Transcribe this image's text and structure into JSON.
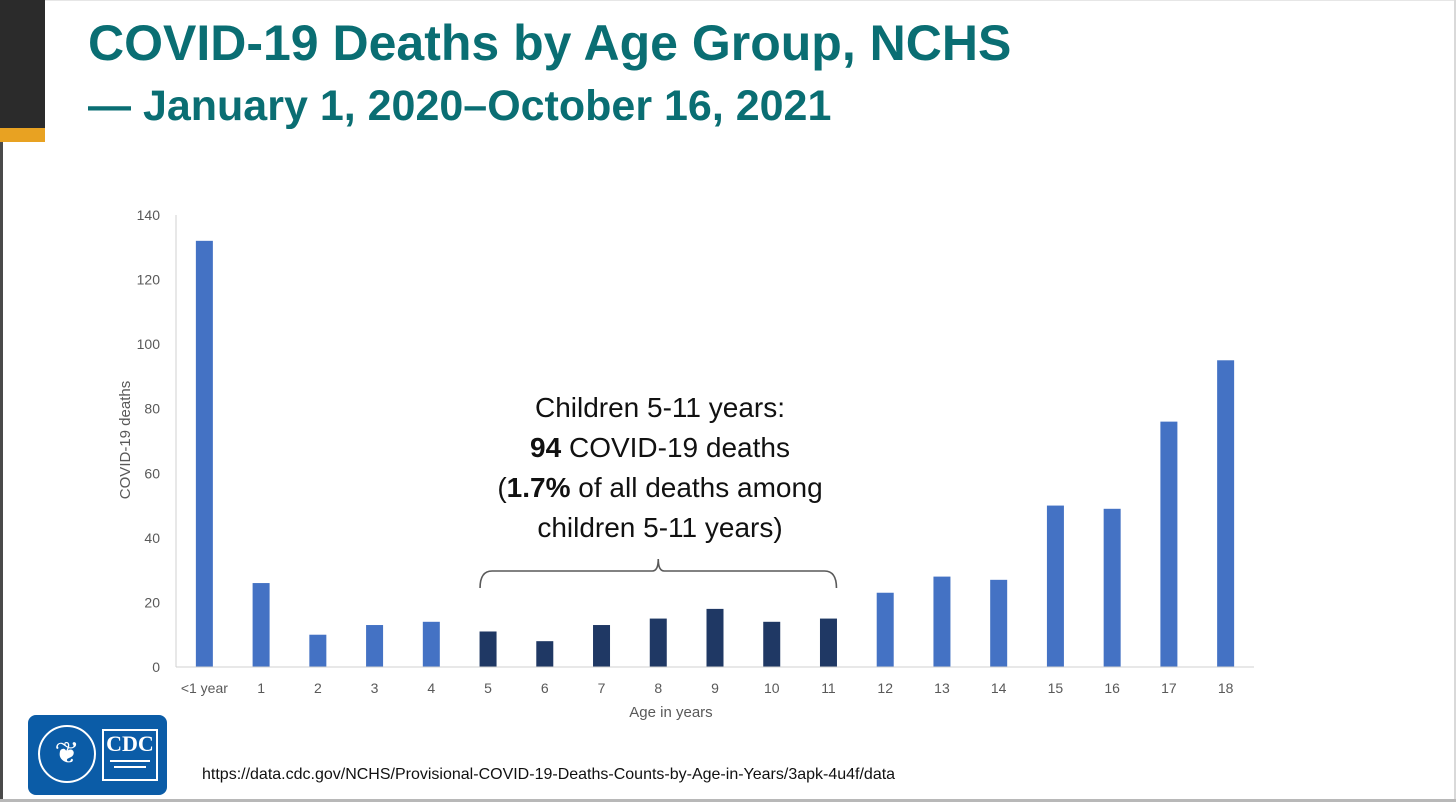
{
  "slide": {
    "title": "COVID-19 Deaths by Age Group, NCHS",
    "subtitle": "— January 1, 2020–October 16, 2021",
    "source_url": "https://data.cdc.gov/NCHS/Provisional-COVID-19-Deaths-Counts-by-Age-in-Years/3apk-4u4f/data",
    "logo_text": "CDC"
  },
  "annotation": {
    "line1": "Children 5-11 years:",
    "count": "94",
    "line2_suffix": " COVID-19 deaths",
    "pct_open": "(",
    "pct": "1.7%",
    "line3_suffix": " of all deaths among",
    "line4": "children 5-11 years)"
  },
  "colors": {
    "bar_default": "#4472c4",
    "bar_highlight": "#1f3864",
    "title": "#0a6e73",
    "accent": "#e8a222"
  },
  "chart_data": {
    "type": "bar",
    "title": "",
    "xlabel": "Age in years",
    "ylabel": "COVID-19 deaths",
    "categories": [
      "<1 year",
      "1",
      "2",
      "3",
      "4",
      "5",
      "6",
      "7",
      "8",
      "9",
      "10",
      "11",
      "12",
      "13",
      "14",
      "15",
      "16",
      "17",
      "18"
    ],
    "values": [
      132,
      26,
      10,
      13,
      14,
      11,
      8,
      13,
      15,
      18,
      14,
      15,
      23,
      28,
      27,
      50,
      49,
      76,
      95
    ],
    "highlight": [
      "5",
      "6",
      "7",
      "8",
      "9",
      "10",
      "11"
    ],
    "ylim": [
      0,
      140
    ],
    "yticks": [
      0,
      20,
      40,
      60,
      80,
      100,
      120,
      140
    ],
    "grid": false,
    "legend": "none"
  }
}
